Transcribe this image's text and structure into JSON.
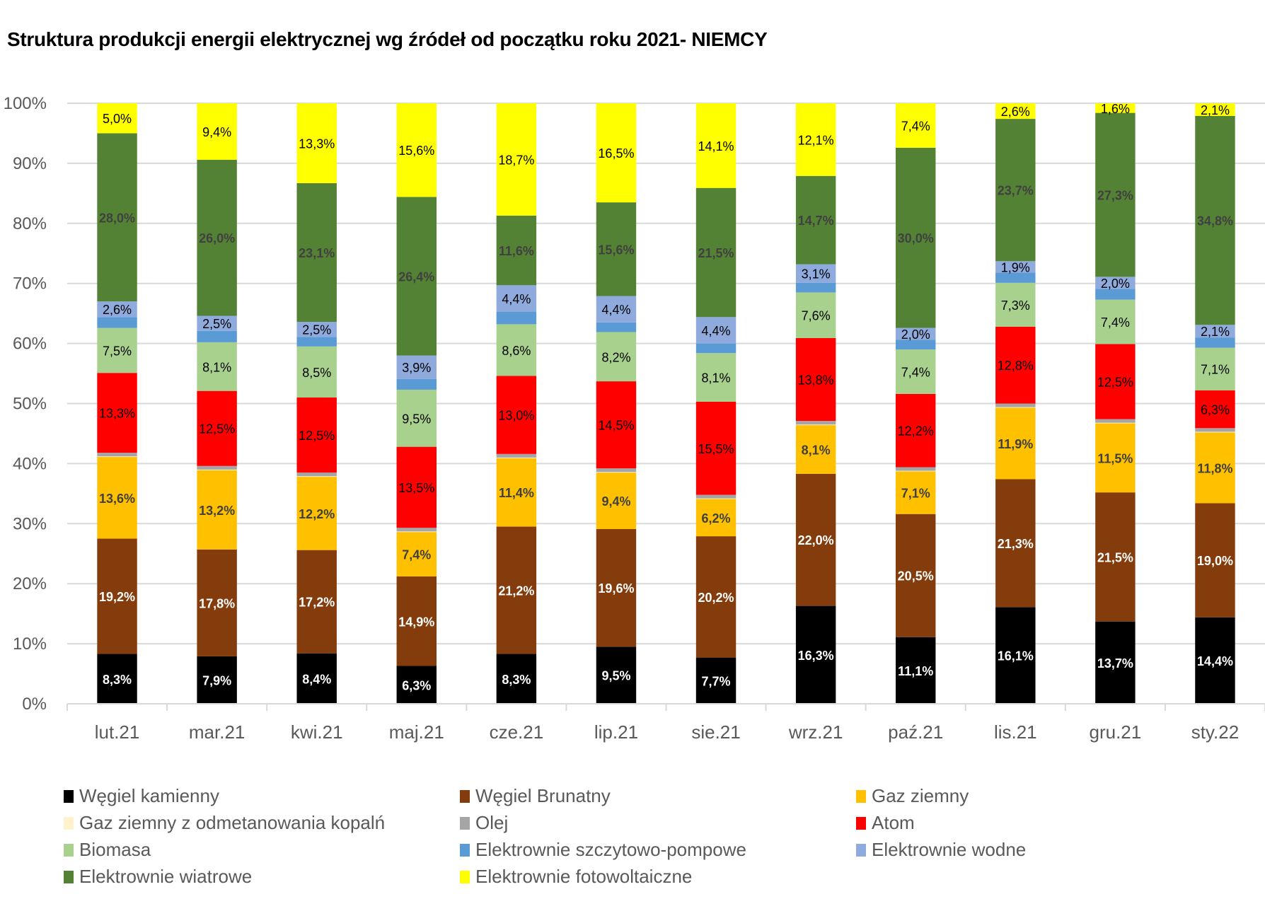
{
  "chart_data": {
    "type": "bar",
    "stacked": true,
    "percent": true,
    "title": "Struktura produkcji energii elektrycznej wg źródeł od początku roku 2021- NIEMCY",
    "xlabel": "",
    "ylabel": "",
    "ylim": [
      0,
      100
    ],
    "yticks": [
      "0%",
      "10%",
      "20%",
      "30%",
      "40%",
      "50%",
      "60%",
      "70%",
      "80%",
      "90%",
      "100%"
    ],
    "grid": true,
    "legend_position": "bottom",
    "categories": [
      "lut.21",
      "mar.21",
      "kwi.21",
      "maj.21",
      "cze.21",
      "lip.21",
      "sie.21",
      "wrz.21",
      "paź.21",
      "lis.21",
      "gru.21",
      "sty.22"
    ],
    "series": [
      {
        "name": "Węgiel kamienny",
        "color": "#000000",
        "label_color": "#ffffff",
        "label_bold": true,
        "show_labels": true,
        "values": [
          8.3,
          7.9,
          8.4,
          6.3,
          8.3,
          9.5,
          7.7,
          16.3,
          11.1,
          16.1,
          13.7,
          14.4
        ]
      },
      {
        "name": "Węgiel Brunatny",
        "color": "#843C0C",
        "label_color": "#ffffff",
        "label_bold": true,
        "show_labels": true,
        "values": [
          19.2,
          17.8,
          17.2,
          14.9,
          21.2,
          19.6,
          20.2,
          22.0,
          20.5,
          21.3,
          21.5,
          19.0
        ]
      },
      {
        "name": "Gaz ziemny",
        "color": "#FFC000",
        "label_color": "#404040",
        "label_bold": true,
        "show_labels": true,
        "values": [
          13.6,
          13.2,
          12.2,
          7.4,
          11.4,
          9.4,
          6.2,
          8.1,
          7.1,
          11.9,
          11.5,
          11.8
        ]
      },
      {
        "name": "Gaz ziemny z odmetanowania kopalń",
        "color": "#FFF2CC",
        "label_color": "#000000",
        "label_bold": false,
        "show_labels": false,
        "values": [
          0.1,
          0.1,
          0.1,
          0.1,
          0.1,
          0.1,
          0.1,
          0.1,
          0.1,
          0.1,
          0.1,
          0.1
        ]
      },
      {
        "name": "Olej",
        "color": "#A5A5A5",
        "label_color": "#000000",
        "label_bold": false,
        "show_labels": false,
        "values": [
          0.6,
          0.6,
          0.6,
          0.6,
          0.6,
          0.6,
          0.6,
          0.6,
          0.6,
          0.6,
          0.6,
          0.6
        ]
      },
      {
        "name": "Atom",
        "color": "#FF0000",
        "label_color": "#000000",
        "label_bold": false,
        "show_labels": true,
        "values": [
          13.3,
          12.5,
          12.5,
          13.5,
          13.0,
          14.5,
          15.5,
          13.8,
          12.2,
          12.8,
          12.5,
          6.3
        ]
      },
      {
        "name": "Biomasa",
        "color": "#A9D18E",
        "label_color": "#000000",
        "label_bold": false,
        "show_labels": true,
        "values": [
          7.5,
          8.1,
          8.5,
          9.5,
          8.6,
          8.2,
          8.1,
          7.6,
          7.4,
          7.3,
          7.4,
          7.1
        ]
      },
      {
        "name": "Elektrownie szczytowo-pompowe",
        "color": "#5B9BD5",
        "label_color": "#000000",
        "label_bold": false,
        "show_labels": false,
        "values": [
          1.8,
          1.9,
          1.6,
          1.8,
          2.1,
          1.6,
          1.6,
          1.6,
          1.6,
          1.7,
          1.8,
          1.7
        ]
      },
      {
        "name": "Elektrownie wodne",
        "color": "#8FAADC",
        "label_color": "#000000",
        "label_bold": false,
        "show_labels": true,
        "values": [
          2.6,
          2.5,
          2.5,
          3.9,
          4.4,
          4.4,
          4.4,
          3.1,
          2.0,
          1.9,
          2.0,
          2.1
        ]
      },
      {
        "name": "Elektrownie wiatrowe",
        "color": "#548235",
        "label_color": "#404040",
        "label_bold": true,
        "show_labels": true,
        "values": [
          28.0,
          26.0,
          23.1,
          26.4,
          11.6,
          15.6,
          21.5,
          14.7,
          30.0,
          23.7,
          27.3,
          34.8
        ]
      },
      {
        "name": "Elektrownie fotowoltaiczne",
        "color": "#FFFF00",
        "label_color": "#000000",
        "label_bold": false,
        "show_labels": true,
        "values": [
          5.0,
          9.4,
          13.3,
          15.6,
          18.7,
          16.5,
          14.1,
          12.1,
          7.4,
          2.6,
          1.6,
          2.1
        ]
      }
    ]
  }
}
